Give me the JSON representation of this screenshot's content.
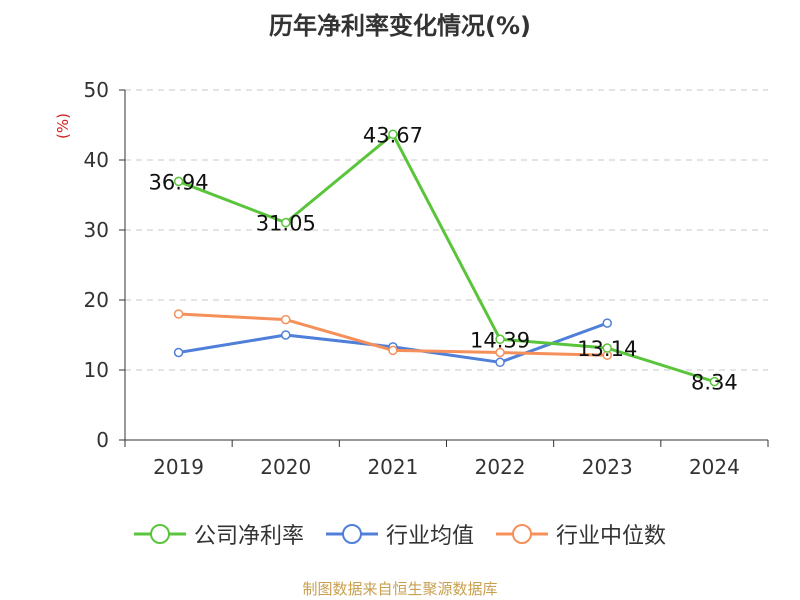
{
  "chart_data": {
    "type": "line",
    "title": "历年净利率变化情况(%)",
    "ylabel": "(%)",
    "categories": [
      "2019",
      "2020",
      "2021",
      "2022",
      "2023",
      "2024"
    ],
    "ylim": [
      0,
      50
    ],
    "yticks": [
      0,
      10,
      20,
      30,
      40,
      50
    ],
    "grid": true,
    "legend_position": "bottom",
    "series": [
      {
        "name": "公司净利率",
        "color": "#5ac43b",
        "values": [
          36.94,
          31.05,
          43.67,
          14.39,
          13.14,
          8.34
        ],
        "labels": [
          "36.94",
          "31.05",
          "43.67",
          "14.39",
          "13.14",
          "8.34"
        ]
      },
      {
        "name": "行业均值",
        "color": "#4f7fd9",
        "values": [
          12.5,
          15.0,
          13.3,
          11.1,
          16.7,
          null
        ]
      },
      {
        "name": "行业中位数",
        "color": "#f5905a",
        "values": [
          18.0,
          17.2,
          12.8,
          12.5,
          12.1,
          null
        ]
      }
    ]
  },
  "footer": {
    "source": "制图数据来自恒生聚源数据库"
  }
}
